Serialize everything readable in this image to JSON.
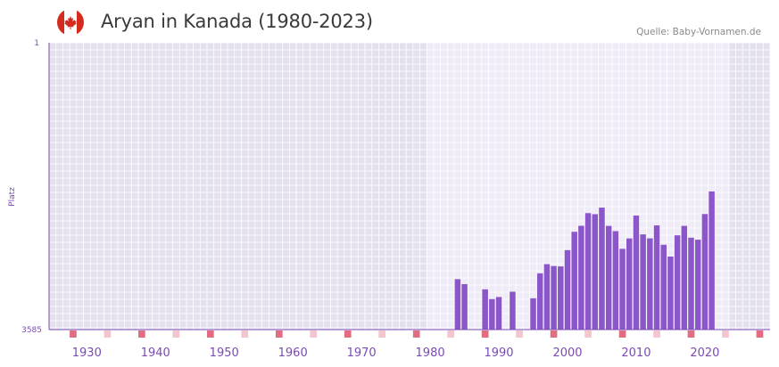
{
  "header": {
    "title": "Aryan in Kanada (1980-2023)",
    "source": "Quelle: Baby-Vornamen.de",
    "flag_icon": "canada-flag-icon"
  },
  "colors": {
    "bar": "#8a56c9",
    "axis": "#7b4bb3",
    "bg_outside": "#e4e0ee",
    "bg_inside": "#efebf7",
    "marker_decade": "#e06e80",
    "marker_other": "#f3c6cd"
  },
  "chart_data": {
    "type": "bar",
    "title": "Aryan in Kanada (1980-2023)",
    "xlabel": "",
    "ylabel": "Platz",
    "y_axis_inverted": true,
    "ylim": [
      3585,
      1
    ],
    "y_ticks": [
      "1",
      "3585"
    ],
    "x_ticks": [
      "1930",
      "1940",
      "1950",
      "1960",
      "1970",
      "1980",
      "1990",
      "2000",
      "2010",
      "2020"
    ],
    "x_range": [
      1925,
      2029
    ],
    "highlight_range": [
      1980,
      2023
    ],
    "series": [
      {
        "name": "Platz",
        "years": [
          1984,
          1985,
          1988,
          1989,
          1990,
          1992,
          1995,
          1996,
          1997,
          1998,
          1999,
          2000,
          2001,
          2002,
          2003,
          2004,
          2005,
          2006,
          2007,
          2008,
          2009,
          2010,
          2011,
          2012,
          2013,
          2014,
          2015,
          2016,
          2017,
          2018,
          2019,
          2020,
          2021
        ],
        "values": [
          2955,
          3017,
          3082,
          3204,
          3178,
          3112,
          3194,
          2882,
          2767,
          2791,
          2796,
          2592,
          2363,
          2288,
          2130,
          2143,
          2061,
          2289,
          2355,
          2576,
          2446,
          2160,
          2396,
          2445,
          2283,
          2525,
          2672,
          2407,
          2289,
          2437,
          2462,
          2141,
          1859
        ]
      }
    ]
  }
}
